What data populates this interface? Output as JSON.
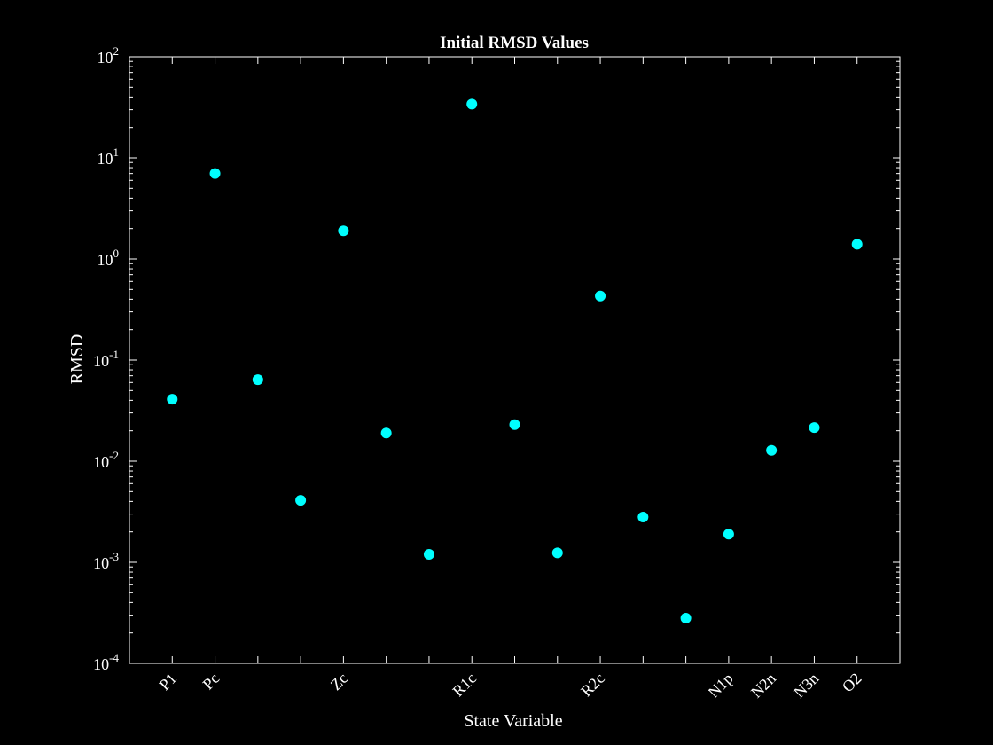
{
  "chart_data": {
    "type": "scatter",
    "title": "Initial RMSD Values",
    "xlabel": "State Variable",
    "ylabel": "RMSD",
    "yscale": "log",
    "ylim": [
      0.0001,
      100
    ],
    "xlim": [
      0,
      18
    ],
    "x_tick_labels": [
      "P1",
      "Pc",
      "",
      "",
      "Zc",
      "",
      "",
      "R1c",
      "",
      "",
      "R2c",
      "",
      "",
      "N1p",
      "N2n",
      "N3n",
      "O2"
    ],
    "y_ticks": [
      {
        "base": "10",
        "exp": "-4",
        "value": 0.0001
      },
      {
        "base": "10",
        "exp": "-3",
        "value": 0.001
      },
      {
        "base": "10",
        "exp": "-2",
        "value": 0.01
      },
      {
        "base": "10",
        "exp": "-1",
        "value": 0.1
      },
      {
        "base": "10",
        "exp": "0",
        "value": 1
      },
      {
        "base": "10",
        "exp": "1",
        "value": 10
      },
      {
        "base": "10",
        "exp": "2",
        "value": 100
      }
    ],
    "marker_color": "#00ffff",
    "background": "#000000",
    "points": [
      {
        "x": 1,
        "y": 0.041
      },
      {
        "x": 2,
        "y": 7.0
      },
      {
        "x": 3,
        "y": 0.064
      },
      {
        "x": 4,
        "y": 0.0041
      },
      {
        "x": 5,
        "y": 1.9
      },
      {
        "x": 6,
        "y": 0.019
      },
      {
        "x": 7,
        "y": 0.0012
      },
      {
        "x": 8,
        "y": 34
      },
      {
        "x": 9,
        "y": 0.023
      },
      {
        "x": 10,
        "y": 0.00124
      },
      {
        "x": 11,
        "y": 0.43
      },
      {
        "x": 12,
        "y": 0.0028
      },
      {
        "x": 13,
        "y": 0.00028
      },
      {
        "x": 14,
        "y": 0.0019
      },
      {
        "x": 15,
        "y": 0.0128
      },
      {
        "x": 16,
        "y": 0.0215
      },
      {
        "x": 17,
        "y": 1.4
      }
    ]
  }
}
